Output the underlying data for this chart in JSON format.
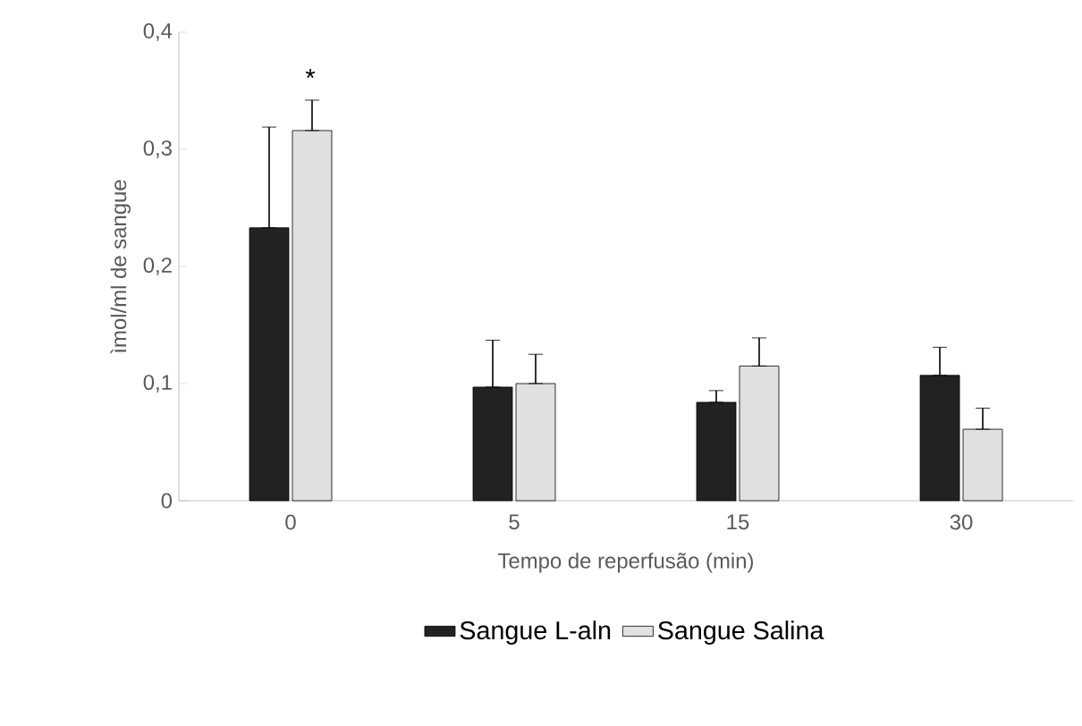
{
  "chart_data": {
    "type": "bar",
    "xlabel": "Tempo de reperfusão (min)",
    "ylabel": "ìmol/ml de sangue",
    "categories": [
      "0",
      "5",
      "15",
      "30"
    ],
    "series": [
      {
        "name": "Sangue L-aln",
        "color": "#222222",
        "values": [
          0.233,
          0.097,
          0.084,
          0.107
        ],
        "errors": [
          [
            0.233,
            0.319
          ],
          [
            0.097,
            0.137
          ],
          [
            0.084,
            0.094
          ],
          [
            0.107,
            0.131
          ]
        ]
      },
      {
        "name": "Sangue Salina",
        "color": "#e0e0e0",
        "values": [
          0.316,
          0.1,
          0.115,
          0.061
        ],
        "errors": [
          [
            0.316,
            0.342
          ],
          [
            0.1,
            0.125
          ],
          [
            0.115,
            0.139
          ],
          [
            0.061,
            0.079
          ]
        ]
      }
    ],
    "ylim": [
      0,
      0.4
    ],
    "yticks": [
      0,
      {
        "value": 0.1,
        "label": "0,1"
      },
      {
        "value": 0.2,
        "label": "0,2"
      },
      {
        "value": 0.3,
        "label": "0,3"
      },
      {
        "value": 0.4,
        "label": "0,4"
      }
    ],
    "annotations": [
      "*"
    ],
    "legend": "bottom",
    "grid": false
  }
}
